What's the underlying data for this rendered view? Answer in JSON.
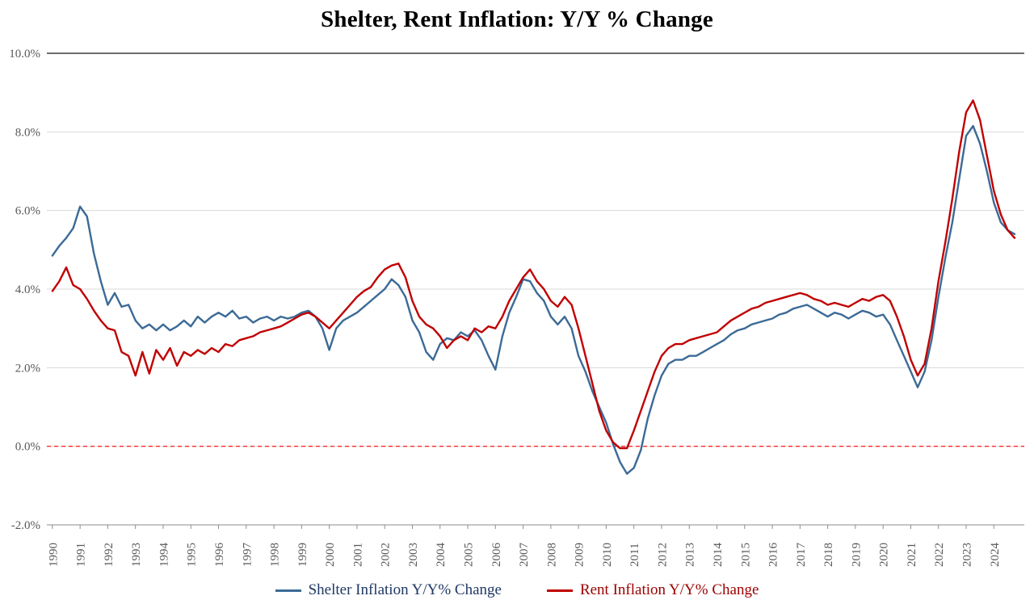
{
  "chart_data": {
    "type": "line",
    "title": "Shelter, Rent Inflation: Y/Y % Change",
    "xlabel": "",
    "ylabel": "",
    "x_start": 1990,
    "x_step": 0.25,
    "ylim": [
      -2,
      10
    ],
    "grid": true,
    "legend_position": "bottom",
    "ytick_values": [
      10,
      8,
      6,
      4,
      2,
      0,
      -2
    ],
    "ytick_labels": [
      "10.0%",
      "8.0%",
      "6.0%",
      "4.0%",
      "2.0%",
      "0.0%",
      "-2.0%"
    ],
    "xtick_labels": [
      "1990",
      "1991",
      "1992",
      "1993",
      "1994",
      "1995",
      "1996",
      "1997",
      "1998",
      "1999",
      "2000",
      "2001",
      "2002",
      "2003",
      "2004",
      "2005",
      "2006",
      "2007",
      "2008",
      "2009",
      "2010",
      "2011",
      "2012",
      "2013",
      "2014",
      "2015",
      "2016",
      "2017",
      "2018",
      "2019",
      "2020",
      "2021",
      "2022",
      "2023",
      "2024"
    ],
    "zero_line": {
      "value": 0,
      "style": "dashed",
      "color": "#ff2a2a"
    },
    "style": {
      "grid_color": "#d9d9d9",
      "top_border_color": "#3b3b3b",
      "axis_color": "#8c8c8c",
      "tick_label_color": "#595959",
      "background": "#ffffff"
    },
    "series": [
      {
        "name": "Shelter Inflation Y/Y% Change",
        "color": "#3b6a96",
        "legend_text_color": "#1f3864",
        "values": [
          4.85,
          5.1,
          5.3,
          5.55,
          6.1,
          5.85,
          4.9,
          4.2,
          3.6,
          3.9,
          3.55,
          3.6,
          3.2,
          3.0,
          3.1,
          2.95,
          3.1,
          2.95,
          3.05,
          3.2,
          3.05,
          3.3,
          3.15,
          3.3,
          3.4,
          3.3,
          3.45,
          3.25,
          3.3,
          3.15,
          3.25,
          3.3,
          3.2,
          3.3,
          3.25,
          3.3,
          3.4,
          3.45,
          3.3,
          3.0,
          2.45,
          3.0,
          3.2,
          3.3,
          3.4,
          3.55,
          3.7,
          3.85,
          4.0,
          4.25,
          4.1,
          3.8,
          3.2,
          2.9,
          2.4,
          2.2,
          2.6,
          2.75,
          2.7,
          2.9,
          2.8,
          2.95,
          2.7,
          2.3,
          1.95,
          2.8,
          3.4,
          3.8,
          4.25,
          4.2,
          3.9,
          3.7,
          3.3,
          3.1,
          3.3,
          3.0,
          2.3,
          1.9,
          1.4,
          1.0,
          0.6,
          0.05,
          -0.4,
          -0.7,
          -0.55,
          -0.1,
          0.7,
          1.3,
          1.8,
          2.1,
          2.2,
          2.2,
          2.3,
          2.3,
          2.4,
          2.5,
          2.6,
          2.7,
          2.85,
          2.95,
          3.0,
          3.1,
          3.15,
          3.2,
          3.25,
          3.35,
          3.4,
          3.5,
          3.55,
          3.6,
          3.5,
          3.4,
          3.3,
          3.4,
          3.35,
          3.25,
          3.35,
          3.45,
          3.4,
          3.3,
          3.35,
          3.1,
          2.7,
          2.3,
          1.9,
          1.5,
          1.9,
          2.7,
          3.8,
          4.8,
          5.7,
          6.8,
          7.9,
          8.15,
          7.7,
          7.0,
          6.2,
          5.7,
          5.5,
          5.4
        ]
      },
      {
        "name": "Rent Inflation Y/Y% Change",
        "color": "#c00000",
        "legend_text_color": "#9c0000",
        "values": [
          3.95,
          4.2,
          4.55,
          4.1,
          4.0,
          3.75,
          3.45,
          3.2,
          3.0,
          2.95,
          2.4,
          2.3,
          1.8,
          2.4,
          1.85,
          2.45,
          2.2,
          2.5,
          2.05,
          2.4,
          2.3,
          2.45,
          2.35,
          2.5,
          2.4,
          2.6,
          2.55,
          2.7,
          2.75,
          2.8,
          2.9,
          2.95,
          3.0,
          3.05,
          3.15,
          3.25,
          3.35,
          3.4,
          3.3,
          3.15,
          3.0,
          3.2,
          3.4,
          3.6,
          3.8,
          3.95,
          4.05,
          4.3,
          4.5,
          4.6,
          4.65,
          4.3,
          3.7,
          3.3,
          3.1,
          3.0,
          2.8,
          2.5,
          2.7,
          2.8,
          2.7,
          3.0,
          2.9,
          3.05,
          3.0,
          3.3,
          3.7,
          4.0,
          4.3,
          4.5,
          4.2,
          4.0,
          3.7,
          3.55,
          3.8,
          3.6,
          3.0,
          2.3,
          1.6,
          0.9,
          0.4,
          0.1,
          -0.05,
          -0.05,
          0.4,
          0.9,
          1.4,
          1.9,
          2.3,
          2.5,
          2.6,
          2.6,
          2.7,
          2.75,
          2.8,
          2.85,
          2.9,
          3.05,
          3.2,
          3.3,
          3.4,
          3.5,
          3.55,
          3.65,
          3.7,
          3.75,
          3.8,
          3.85,
          3.9,
          3.85,
          3.75,
          3.7,
          3.6,
          3.65,
          3.6,
          3.55,
          3.65,
          3.75,
          3.7,
          3.8,
          3.85,
          3.7,
          3.3,
          2.8,
          2.2,
          1.8,
          2.1,
          3.0,
          4.2,
          5.2,
          6.3,
          7.5,
          8.5,
          8.8,
          8.3,
          7.4,
          6.5,
          5.9,
          5.5,
          5.3
        ]
      }
    ]
  }
}
